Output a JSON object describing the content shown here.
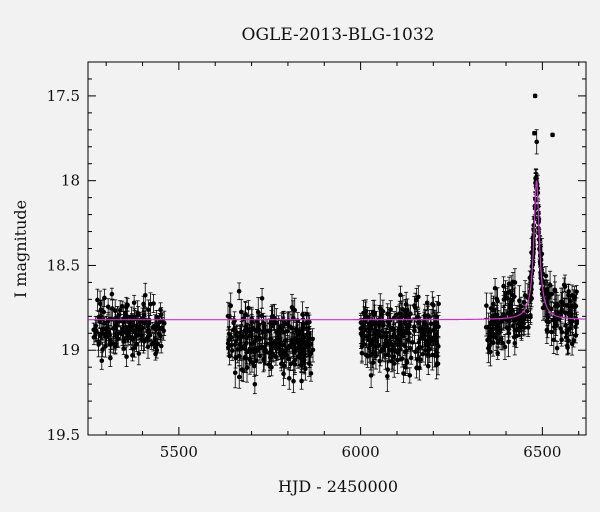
{
  "chart_data": {
    "type": "scatter",
    "title": "OGLE-2013-BLG-1032",
    "xlabel": "HJD - 2450000",
    "ylabel": "I magnitude",
    "xlim": [
      5250,
      6620
    ],
    "ylim": [
      19.5,
      17.3
    ],
    "y_inverted": true,
    "x_ticks": [
      5500,
      6000,
      6500
    ],
    "x_tick_labels": [
      "5500",
      "6000",
      "6500"
    ],
    "y_ticks": [
      17.5,
      18,
      18.5,
      19,
      19.5
    ],
    "y_tick_labels": [
      "17.5",
      "18",
      "18.5",
      "19",
      "19.5"
    ],
    "colors": {
      "data": "#000000",
      "model": "#cc33cc",
      "background": "#f2f2f2"
    },
    "series": [
      {
        "type": "scatter_errorbar",
        "observing_seasons": [
          {
            "x_range": [
              5265,
              5460
            ],
            "mag_mean": 18.88,
            "mag_spread": 0.2,
            "error": 0.05,
            "n": 170
          },
          {
            "x_range": [
              5635,
              5870
            ],
            "mag_mean": 18.95,
            "mag_spread": 0.25,
            "error": 0.06,
            "n": 260
          },
          {
            "x_range": [
              6000,
              6215
            ],
            "mag_mean": 18.9,
            "mag_spread": 0.25,
            "error": 0.06,
            "n": 260
          },
          {
            "x_range": [
              6345,
              6595
            ],
            "mag_mean": 18.9,
            "mag_spread": 0.22,
            "error": 0.06,
            "n": 240
          }
        ],
        "outlier_points": [
          {
            "x": 6480,
            "y": 17.5,
            "err": 0.01
          },
          {
            "x": 6478,
            "y": 17.72,
            "err": 0.01
          },
          {
            "x": 6528,
            "y": 17.73,
            "err": 0.01
          }
        ]
      },
      {
        "type": "line",
        "model": {
          "baseline": 18.82,
          "peak_x": 6484,
          "peak_mag": 18.0,
          "width_days": 9
        }
      }
    ]
  }
}
